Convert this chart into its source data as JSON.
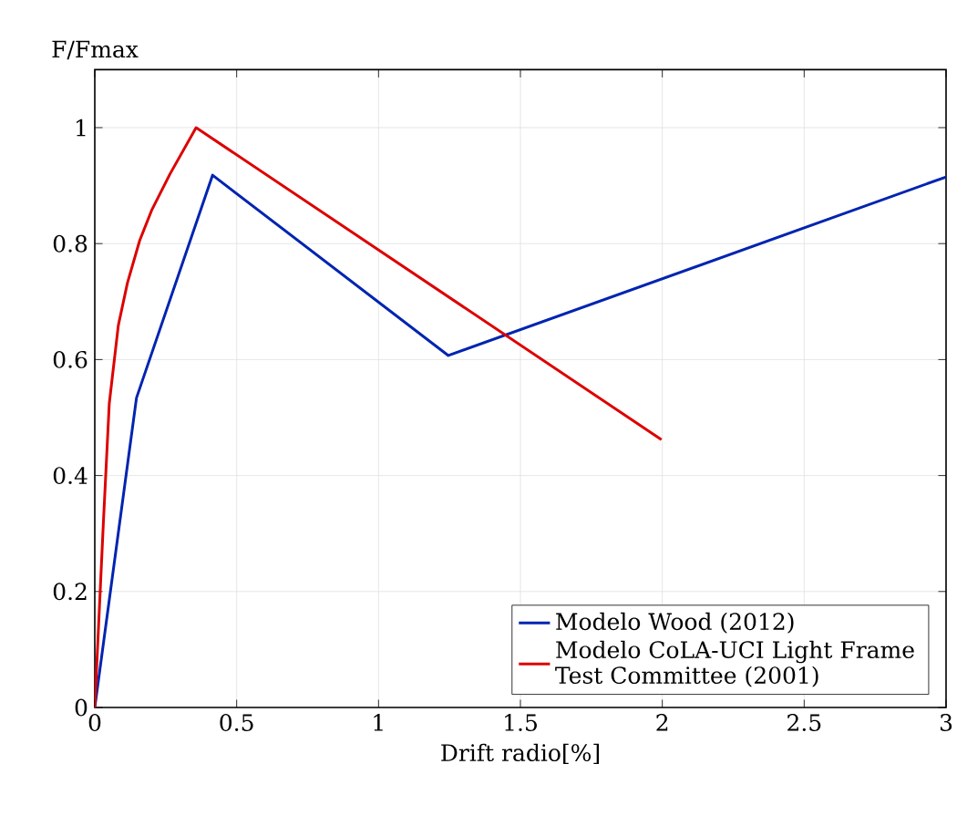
{
  "chart_data": {
    "type": "line",
    "ylabel": "F/Fmax",
    "xlabel": "Drift radio[%]",
    "xlim": [
      0,
      3
    ],
    "ylim": [
      0,
      1.1
    ],
    "xticks": [
      0,
      0.5,
      1,
      1.5,
      2,
      2.5,
      3
    ],
    "yticks": [
      0,
      0.2,
      0.4,
      0.6,
      0.8,
      1
    ],
    "grid": true,
    "legend": "bottom right",
    "series": [
      {
        "name": "Modelo Wood (2012)",
        "color": "#0024b0",
        "x": [
          0,
          0.147,
          0.415,
          1.246,
          3
        ],
        "values": [
          0,
          0.534,
          0.918,
          0.607,
          0.915
        ]
      },
      {
        "name": "Modelo CoLA-UCI Light Frame Test Committee (2001)",
        "color": "#dd0000",
        "x": [
          0,
          0.03,
          0.051,
          0.083,
          0.115,
          0.158,
          0.2,
          0.265,
          0.357,
          1.997
        ],
        "values": [
          0,
          0.316,
          0.524,
          0.659,
          0.732,
          0.805,
          0.857,
          0.92,
          1.0,
          0.462
        ]
      }
    ]
  }
}
